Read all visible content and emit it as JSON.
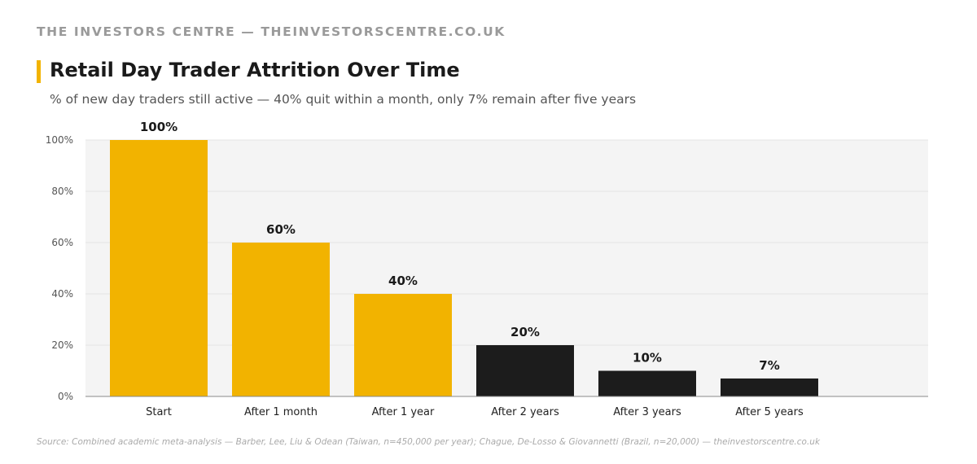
{
  "header": {
    "brand": "THE INVESTORS CENTRE — THEINVESTORSCENTRE.CO.UK",
    "title": "Retail Day Trader Attrition Over Time",
    "subtitle": "% of new day traders still active — 40% quit within a month, only 7% remain after five years"
  },
  "footer": {
    "source": "Source: Combined academic meta-analysis — Barber, Lee, Liu & Odean (Taiwan, n=450,000 per year); Chague, De-Losso & Giovannetti (Brazil, n=20,000) — theinvestorscentre.co.uk"
  },
  "colors": {
    "accent": "#f2b300",
    "dark": "#1c1c1c",
    "plot_bg": "#f4f4f4",
    "grid": "#e4e4e4"
  },
  "chart_data": {
    "type": "bar",
    "categories": [
      "Start",
      "After 1 month",
      "After 1 year",
      "After 2 years",
      "After 3 years",
      "After 5 years"
    ],
    "values": [
      100,
      60,
      40,
      20,
      10,
      7
    ],
    "value_labels": [
      "100%",
      "60%",
      "40%",
      "20%",
      "10%",
      "7%"
    ],
    "bar_colors": [
      "#f2b300",
      "#f2b300",
      "#f2b300",
      "#1c1c1c",
      "#1c1c1c",
      "#1c1c1c"
    ],
    "ylim": [
      0,
      100
    ],
    "yticks": [
      0,
      20,
      40,
      60,
      80,
      100
    ],
    "ytick_labels": [
      "0%",
      "20%",
      "40%",
      "60%",
      "80%",
      "100%"
    ],
    "grid": true,
    "legend": "none"
  }
}
